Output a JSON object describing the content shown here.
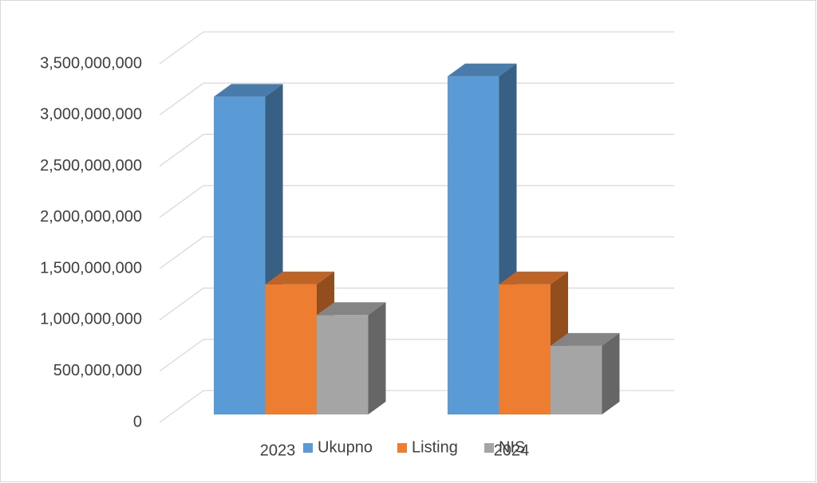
{
  "chart_data": {
    "type": "bar3d",
    "categories": [
      "2023",
      "2024"
    ],
    "series": [
      {
        "name": "Ukupno",
        "color": "#5b9bd5",
        "values": [
          3100000000,
          3300000000
        ]
      },
      {
        "name": "Listing",
        "color": "#ed7d31",
        "values": [
          1270000000,
          1270000000
        ]
      },
      {
        "name": "NIS",
        "color": "#a5a5a5",
        "values": [
          970000000,
          670000000
        ]
      }
    ],
    "ylim": [
      0,
      3500000000
    ],
    "yticks": [
      0,
      {
        "value": 500000000,
        "label": "500,000,000"
      },
      {
        "value": 1000000000,
        "label": "1,000,000,000"
      },
      {
        "value": 1500000000,
        "label": "1,500,000,000"
      },
      {
        "value": 2000000000,
        "label": "2,000,000,000"
      },
      {
        "value": 2500000000,
        "label": "2,500,000,000"
      },
      {
        "value": 3000000000,
        "label": "3,000,000,000"
      },
      {
        "value": 3500000000,
        "label": "3,500,000,000"
      }
    ],
    "grid": true,
    "legend": "bottom"
  }
}
